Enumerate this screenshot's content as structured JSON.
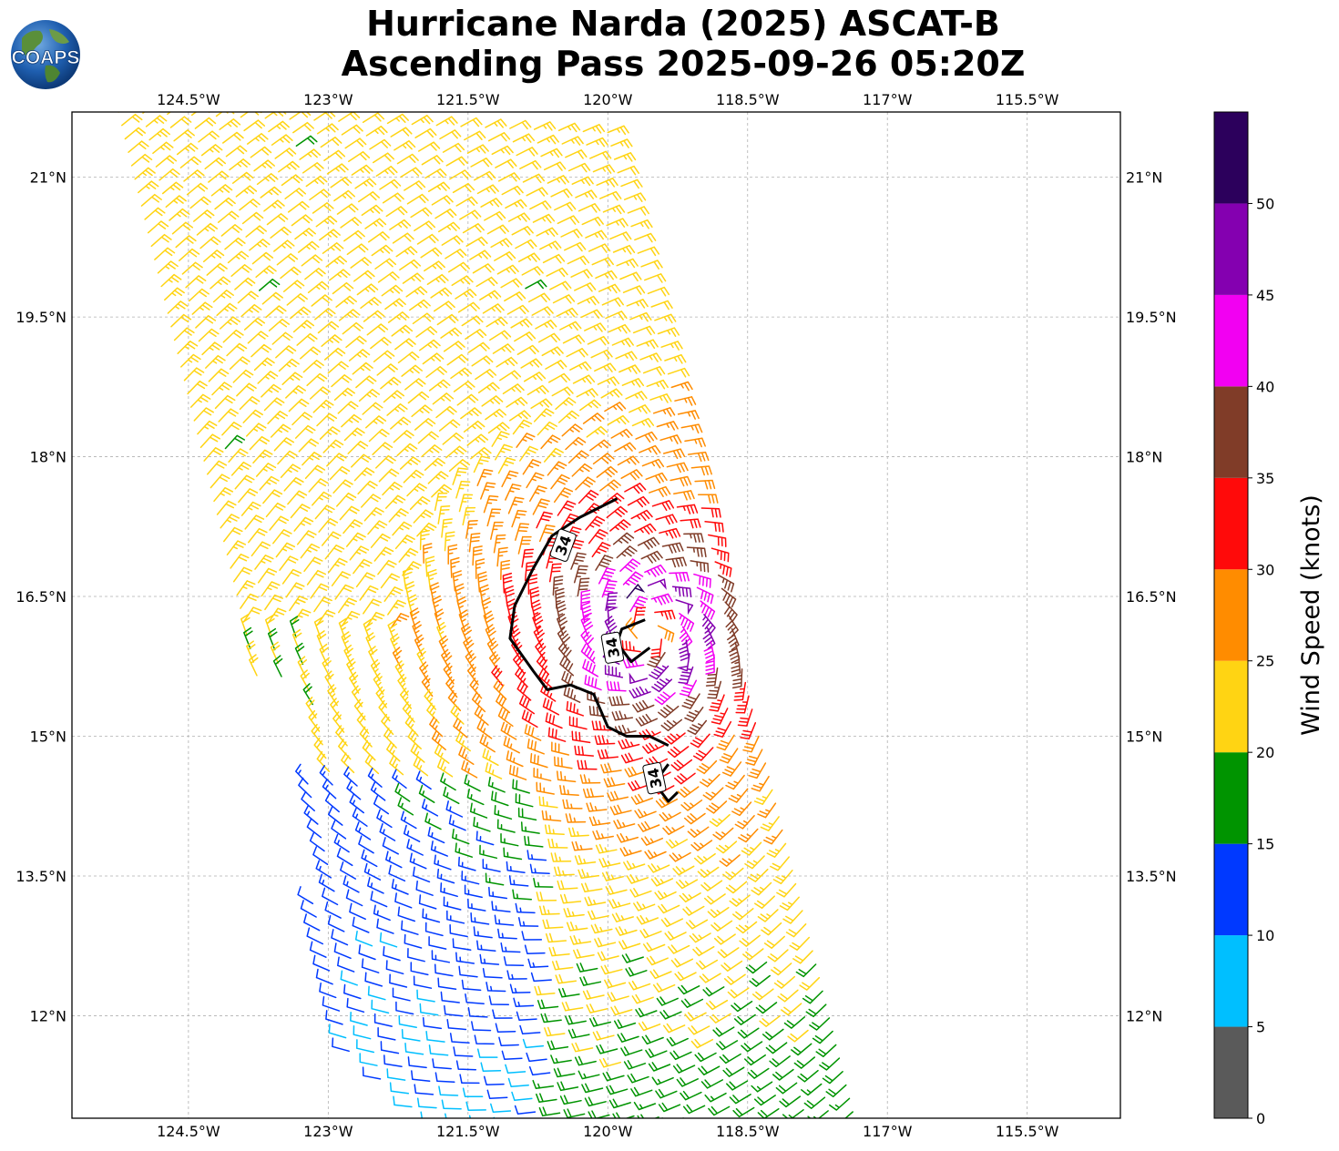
{
  "header": {
    "line1": "Hurricane Narda (2025) ASCAT-B",
    "line2": "Ascending Pass 2025-09-26 05:20Z",
    "logo_text": "COAPS"
  },
  "chart_data": {
    "type": "wind-barb map",
    "title": [
      "Hurricane Narda (2025) ASCAT-B",
      "Ascending Pass 2025-09-26 05:20Z"
    ],
    "x_ticks": [
      "124.5°W",
      "123°W",
      "121.5°W",
      "120°W",
      "118.5°W",
      "117°W",
      "115.5°W"
    ],
    "x_tick_values": [
      -124.5,
      -123,
      -121.5,
      -120,
      -118.5,
      -117,
      -115.5
    ],
    "y_ticks": [
      "21°N",
      "19.5°N",
      "18°N",
      "16.5°N",
      "15°N",
      "13.5°N",
      "12°N"
    ],
    "y_tick_values": [
      21,
      19.5,
      18,
      16.5,
      15,
      13.5,
      12
    ],
    "xlim": [
      -125.75,
      -114.5
    ],
    "ylim": [
      10.9,
      21.7
    ],
    "grid": true,
    "storm_center": {
      "lon": -119.55,
      "lat": 16.1
    },
    "contour_label": "34",
    "contour_34kt": [
      [
        -119.9,
        17.55
      ],
      [
        -120.3,
        17.35
      ],
      [
        -120.6,
        17.15
      ],
      [
        -120.8,
        16.8
      ],
      [
        -121.0,
        16.4
      ],
      [
        -121.05,
        16.05
      ],
      [
        -120.8,
        15.7
      ],
      [
        -120.65,
        15.5
      ],
      [
        -120.4,
        15.55
      ],
      [
        -120.15,
        15.45
      ],
      [
        -120.0,
        15.1
      ],
      [
        -119.8,
        15.0
      ],
      [
        -119.55,
        15.0
      ],
      [
        -119.35,
        14.9
      ]
    ],
    "contour_34kt_inner": [
      [
        -119.6,
        16.25
      ],
      [
        -119.85,
        16.15
      ],
      [
        -119.9,
        16.0
      ],
      [
        -119.75,
        15.8
      ],
      [
        -119.55,
        15.95
      ]
    ],
    "contour_34kt_south": [
      [
        -119.35,
        14.7
      ],
      [
        -119.5,
        14.5
      ],
      [
        -119.35,
        14.3
      ],
      [
        -119.25,
        14.4
      ]
    ],
    "swath": {
      "top_lon_west": -125.25,
      "top_lon_east": -120.0,
      "bottom_lon_west": -122.6,
      "bottom_lon_east": -117.3,
      "lat_top": 21.7,
      "lat_bottom": 10.9
    },
    "colorbar": {
      "label": "Wind Speed (knots)",
      "ticks": [
        "0",
        "5",
        "10",
        "15",
        "20",
        "25",
        "30",
        "35",
        "40",
        "45",
        "50"
      ],
      "tick_values": [
        0,
        5,
        10,
        15,
        20,
        25,
        30,
        35,
        40,
        45,
        50
      ],
      "range": [
        0,
        55
      ],
      "bins": [
        {
          "min": 0,
          "max": 5,
          "color": "#5a5a5a"
        },
        {
          "min": 5,
          "max": 10,
          "color": "#00bfff"
        },
        {
          "min": 10,
          "max": 15,
          "color": "#0039ff"
        },
        {
          "min": 15,
          "max": 20,
          "color": "#009400"
        },
        {
          "min": 20,
          "max": 25,
          "color": "#ffd413"
        },
        {
          "min": 25,
          "max": 30,
          "color": "#ff8c00"
        },
        {
          "min": 30,
          "max": 35,
          "color": "#ff0a0a"
        },
        {
          "min": 35,
          "max": 40,
          "color": "#803c28"
        },
        {
          "min": 40,
          "max": 45,
          "color": "#f200f2"
        },
        {
          "min": 45,
          "max": 50,
          "color": "#8400b0"
        },
        {
          "min": 50,
          "max": 55,
          "color": "#2c005c"
        }
      ]
    }
  }
}
